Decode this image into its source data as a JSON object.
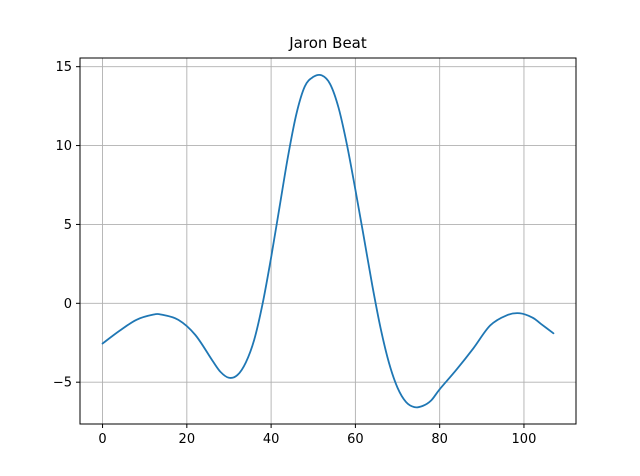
{
  "chart_data": {
    "type": "line",
    "title": "Jaron Beat",
    "xlabel": "",
    "ylabel": "",
    "xlim": [
      -5.35,
      112.35
    ],
    "ylim": [
      -7.65,
      15.55
    ],
    "xticks": [
      0,
      20,
      40,
      60,
      80,
      100
    ],
    "yticks": [
      -5,
      0,
      5,
      10,
      15
    ],
    "xtick_labels": [
      "0",
      "20",
      "40",
      "60",
      "80",
      "100"
    ],
    "ytick_labels": [
      "−5",
      "0",
      "5",
      "10",
      "15"
    ],
    "grid": true,
    "line_color": "#1f77b4",
    "grid_color": "#b0b0b0",
    "series": [
      {
        "x": [
          0,
          4,
          8,
          12,
          14,
          18,
          22,
          26,
          28,
          30,
          32,
          34,
          36,
          38,
          40,
          42,
          44,
          46,
          48,
          50,
          52,
          54,
          56,
          58,
          60,
          62,
          64,
          66,
          68,
          70,
          72,
          74,
          76,
          78,
          80,
          84,
          88,
          92,
          96,
          99,
          102,
          104,
          107
        ],
        "y": [
          -2.55,
          -1.75,
          -1.05,
          -0.72,
          -0.72,
          -1.05,
          -2.0,
          -3.6,
          -4.35,
          -4.72,
          -4.55,
          -3.75,
          -2.3,
          0.0,
          2.9,
          6.1,
          9.3,
          12.0,
          13.75,
          14.35,
          14.45,
          13.9,
          12.4,
          10.05,
          7.2,
          4.2,
          1.15,
          -1.6,
          -3.8,
          -5.35,
          -6.25,
          -6.58,
          -6.5,
          -6.15,
          -5.45,
          -4.2,
          -2.85,
          -1.4,
          -0.75,
          -0.63,
          -0.9,
          -1.3,
          -1.9
        ]
      }
    ]
  }
}
